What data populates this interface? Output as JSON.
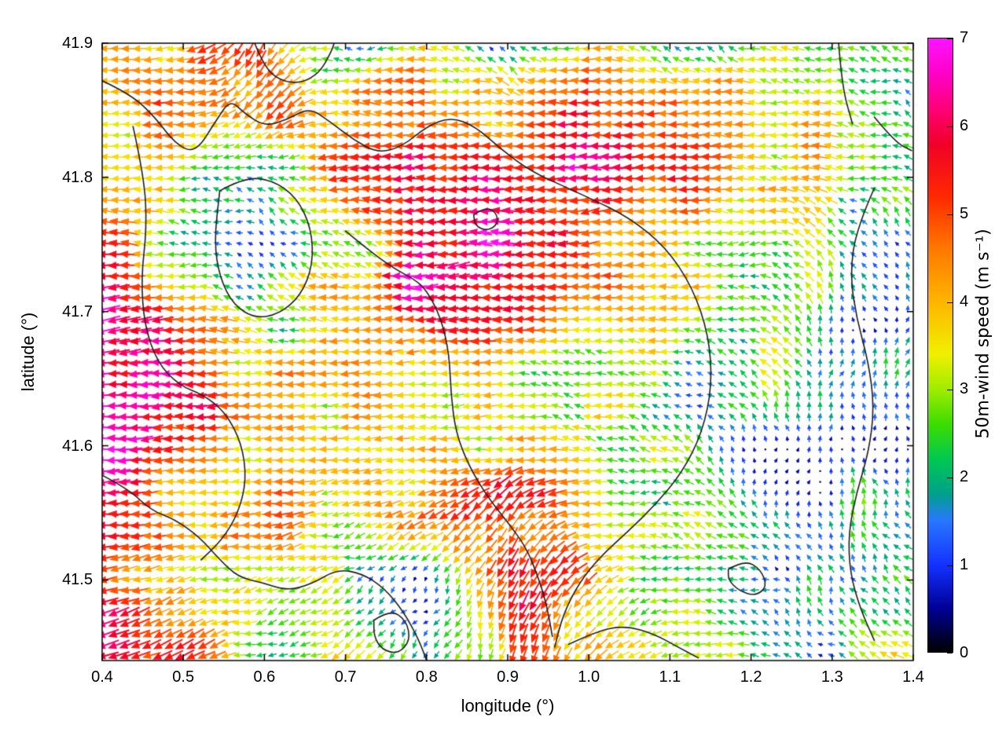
{
  "chart_data": {
    "type": "quiver",
    "title": "",
    "xlabel": "longitude (°)",
    "ylabel": "latitude (°)",
    "xlim": [
      0.4,
      1.4
    ],
    "ylim": [
      41.44,
      41.9
    ],
    "xticks": [
      "0.4",
      "0.5",
      "0.6",
      "0.7",
      "0.8",
      "0.9",
      "1.0",
      "1.1",
      "1.2",
      "1.3",
      "1.4"
    ],
    "yticks": [
      "41.5",
      "41.6",
      "41.7",
      "41.8",
      "41.9"
    ],
    "grid": "none",
    "colorbar": {
      "label": "50m-wind speed (m s⁻¹)",
      "min": 0,
      "max": 7,
      "ticks": [
        "0",
        "1",
        "2",
        "3",
        "4",
        "5",
        "6",
        "7"
      ],
      "stops": [
        [
          0.0,
          "#000000"
        ],
        [
          0.5,
          "#000096"
        ],
        [
          1.0,
          "#1432ff"
        ],
        [
          1.5,
          "#2878ff"
        ],
        [
          1.8,
          "#00a08c"
        ],
        [
          2.2,
          "#00c850"
        ],
        [
          2.6,
          "#3cdc00"
        ],
        [
          3.0,
          "#a0ec00"
        ],
        [
          3.4,
          "#f0f000"
        ],
        [
          4.0,
          "#ffb400"
        ],
        [
          4.6,
          "#ff7800"
        ],
        [
          5.2,
          "#ff2800"
        ],
        [
          5.8,
          "#f00028"
        ],
        [
          6.2,
          "#ff0078"
        ],
        [
          6.6,
          "#ff00c8"
        ],
        [
          7.0,
          "#ff14ff"
        ]
      ]
    },
    "wind_grid": {
      "lon": [
        0.4,
        0.5,
        0.6,
        0.7,
        0.8,
        0.9,
        1.0,
        1.1,
        1.2,
        1.3,
        1.4
      ],
      "lat": [
        41.9,
        41.85,
        41.8,
        41.75,
        41.7,
        41.65,
        41.6,
        41.55,
        41.5,
        41.45
      ],
      "speed": [
        [
          3.5,
          4.0,
          5.0,
          1.2,
          4.0,
          1.5,
          4.0,
          2.5,
          2.5,
          3.0,
          2.5
        ],
        [
          4.0,
          4.5,
          5.0,
          4.5,
          5.0,
          4.0,
          5.0,
          5.0,
          4.0,
          3.5,
          2.5
        ],
        [
          3.5,
          2.5,
          1.5,
          4.5,
          5.5,
          6.0,
          5.5,
          5.0,
          4.0,
          3.0,
          3.0
        ],
        [
          5.0,
          2.5,
          1.5,
          2.5,
          6.5,
          6.5,
          5.0,
          4.5,
          3.0,
          2.5,
          2.0
        ],
        [
          7.0,
          5.0,
          2.5,
          4.0,
          5.5,
          5.5,
          4.5,
          3.5,
          3.0,
          1.5,
          1.5
        ],
        [
          7.0,
          5.5,
          4.0,
          4.0,
          3.5,
          3.5,
          3.5,
          2.5,
          2.5,
          1.5,
          1.5
        ],
        [
          6.5,
          5.0,
          4.5,
          3.5,
          3.5,
          4.0,
          3.0,
          2.5,
          1.2,
          1.0,
          1.5
        ],
        [
          6.0,
          4.5,
          4.0,
          3.5,
          5.0,
          5.5,
          4.0,
          2.5,
          2.0,
          1.5,
          3.0
        ],
        [
          5.0,
          4.5,
          3.0,
          2.5,
          1.5,
          6.0,
          4.0,
          3.0,
          2.0,
          1.5,
          2.5
        ],
        [
          6.5,
          6.0,
          2.5,
          3.0,
          1.5,
          5.0,
          4.0,
          3.5,
          2.0,
          2.0,
          3.5
        ]
      ],
      "dir_deg": [
        [
          180,
          185,
          250,
          170,
          175,
          120,
          180,
          150,
          160,
          170,
          150
        ],
        [
          180,
          180,
          230,
          175,
          180,
          175,
          180,
          185,
          180,
          170,
          160
        ],
        [
          175,
          180,
          160,
          185,
          180,
          180,
          185,
          180,
          175,
          170,
          165
        ],
        [
          180,
          170,
          140,
          160,
          180,
          180,
          180,
          180,
          175,
          120,
          100
        ],
        [
          180,
          180,
          150,
          175,
          180,
          180,
          180,
          175,
          170,
          90,
          90
        ],
        [
          180,
          180,
          175,
          180,
          180,
          175,
          180,
          160,
          140,
          90,
          95
        ],
        [
          180,
          180,
          180,
          185,
          180,
          185,
          175,
          150,
          100,
          90,
          90
        ],
        [
          185,
          180,
          185,
          190,
          200,
          230,
          190,
          160,
          120,
          95,
          130
        ],
        [
          190,
          195,
          200,
          210,
          230,
          250,
          220,
          180,
          150,
          110,
          140
        ],
        [
          195,
          200,
          190,
          220,
          240,
          255,
          230,
          200,
          170,
          140,
          160
        ]
      ]
    },
    "contours": [
      [
        [
          0.4,
          41.872
        ],
        [
          0.435,
          41.862
        ],
        [
          0.465,
          41.845
        ],
        [
          0.49,
          41.825
        ],
        [
          0.515,
          41.818
        ],
        [
          0.54,
          41.842
        ],
        [
          0.558,
          41.858
        ],
        [
          0.575,
          41.848
        ],
        [
          0.6,
          41.838
        ],
        [
          0.628,
          41.843
        ],
        [
          0.655,
          41.852
        ],
        [
          0.68,
          41.842
        ],
        [
          0.71,
          41.828
        ],
        [
          0.74,
          41.818
        ],
        [
          0.77,
          41.823
        ],
        [
          0.8,
          41.838
        ],
        [
          0.83,
          41.845
        ],
        [
          0.86,
          41.838
        ],
        [
          0.89,
          41.822
        ],
        [
          0.92,
          41.808
        ],
        [
          0.945,
          41.8
        ]
      ],
      [
        [
          0.588,
          41.9
        ],
        [
          0.6,
          41.882
        ],
        [
          0.62,
          41.872
        ],
        [
          0.645,
          41.87
        ],
        [
          0.668,
          41.878
        ],
        [
          0.682,
          41.893
        ],
        [
          0.686,
          41.9
        ]
      ],
      [
        [
          0.945,
          41.8
        ],
        [
          1.0,
          41.785
        ],
        [
          1.05,
          41.77
        ],
        [
          1.095,
          41.748
        ],
        [
          1.128,
          41.718
        ],
        [
          1.148,
          41.682
        ],
        [
          1.152,
          41.645
        ],
        [
          1.14,
          41.61
        ],
        [
          1.115,
          41.58
        ],
        [
          1.082,
          41.556
        ],
        [
          1.048,
          41.536
        ],
        [
          1.015,
          41.518
        ],
        [
          0.988,
          41.498
        ],
        [
          0.968,
          41.474
        ],
        [
          0.958,
          41.45
        ]
      ],
      [
        [
          0.7,
          41.76
        ],
        [
          0.73,
          41.745
        ],
        [
          0.76,
          41.732
        ],
        [
          0.785,
          41.724
        ],
        [
          0.8,
          41.716
        ],
        [
          0.818,
          41.695
        ],
        [
          0.828,
          41.668
        ],
        [
          0.83,
          41.638
        ],
        [
          0.836,
          41.61
        ],
        [
          0.852,
          41.585
        ],
        [
          0.875,
          41.562
        ],
        [
          0.9,
          41.543
        ],
        [
          0.922,
          41.525
        ],
        [
          0.936,
          41.505
        ],
        [
          0.948,
          41.482
        ],
        [
          0.955,
          41.458
        ]
      ],
      [
        [
          0.438,
          41.838
        ],
        [
          0.452,
          41.8
        ],
        [
          0.455,
          41.762
        ],
        [
          0.448,
          41.725
        ],
        [
          0.452,
          41.69
        ],
        [
          0.468,
          41.662
        ],
        [
          0.495,
          41.645
        ],
        [
          0.525,
          41.638
        ],
        [
          0.552,
          41.625
        ],
        [
          0.572,
          41.602
        ],
        [
          0.578,
          41.575
        ],
        [
          0.568,
          41.55
        ],
        [
          0.548,
          41.53
        ],
        [
          0.522,
          41.515
        ]
      ],
      [
        [
          0.545,
          41.79
        ],
        [
          0.575,
          41.8
        ],
        [
          0.61,
          41.798
        ],
        [
          0.64,
          41.785
        ],
        [
          0.658,
          41.762
        ],
        [
          0.66,
          41.735
        ],
        [
          0.645,
          41.712
        ],
        [
          0.618,
          41.698
        ],
        [
          0.588,
          41.695
        ],
        [
          0.562,
          41.705
        ],
        [
          0.545,
          41.725
        ],
        [
          0.538,
          41.752
        ],
        [
          0.545,
          41.79
        ]
      ],
      [
        [
          0.4,
          41.578
        ],
        [
          0.432,
          41.568
        ],
        [
          0.46,
          41.552
        ],
        [
          0.49,
          41.545
        ],
        [
          0.52,
          41.532
        ],
        [
          0.545,
          41.515
        ],
        [
          0.568,
          41.502
        ],
        [
          0.598,
          41.498
        ],
        [
          0.628,
          41.492
        ],
        [
          0.658,
          41.497
        ],
        [
          0.69,
          41.508
        ],
        [
          0.72,
          41.505
        ],
        [
          0.748,
          41.494
        ],
        [
          0.772,
          41.476
        ],
        [
          0.79,
          41.456
        ],
        [
          0.8,
          41.44
        ]
      ],
      [
        [
          0.735,
          41.47
        ],
        [
          0.755,
          41.478
        ],
        [
          0.775,
          41.47
        ],
        [
          0.78,
          41.455
        ],
        [
          0.765,
          41.445
        ],
        [
          0.745,
          41.448
        ],
        [
          0.735,
          41.458
        ],
        [
          0.735,
          41.47
        ]
      ],
      [
        [
          0.858,
          41.772
        ],
        [
          0.872,
          41.778
        ],
        [
          0.886,
          41.774
        ],
        [
          0.888,
          41.765
        ],
        [
          0.874,
          41.76
        ],
        [
          0.86,
          41.764
        ],
        [
          0.858,
          41.772
        ]
      ],
      [
        [
          1.352,
          41.792
        ],
        [
          1.33,
          41.762
        ],
        [
          1.322,
          41.728
        ],
        [
          1.33,
          41.695
        ],
        [
          1.345,
          41.662
        ],
        [
          1.352,
          41.628
        ],
        [
          1.345,
          41.595
        ],
        [
          1.33,
          41.565
        ],
        [
          1.32,
          41.535
        ],
        [
          1.322,
          41.505
        ],
        [
          1.335,
          41.478
        ],
        [
          1.352,
          41.455
        ]
      ],
      [
        [
          1.172,
          41.508
        ],
        [
          1.192,
          41.515
        ],
        [
          1.212,
          41.508
        ],
        [
          1.22,
          41.495
        ],
        [
          1.205,
          41.488
        ],
        [
          1.185,
          41.492
        ],
        [
          1.172,
          41.5
        ],
        [
          1.172,
          41.508
        ]
      ],
      [
        [
          0.975,
          41.452
        ],
        [
          1.01,
          41.462
        ],
        [
          1.045,
          41.466
        ],
        [
          1.08,
          41.46
        ],
        [
          1.11,
          41.45
        ],
        [
          1.135,
          41.442
        ]
      ],
      [
        [
          1.308,
          41.9
        ],
        [
          1.312,
          41.868
        ],
        [
          1.325,
          41.84
        ]
      ],
      [
        [
          1.352,
          41.845
        ],
        [
          1.378,
          41.826
        ],
        [
          1.398,
          41.82
        ]
      ]
    ],
    "render": {
      "arrow_cols": 74,
      "arrow_rows": 57,
      "noise_seed": 7,
      "speed_noise_amp": 2.2,
      "dir_noise_amp_deg": 50
    }
  }
}
